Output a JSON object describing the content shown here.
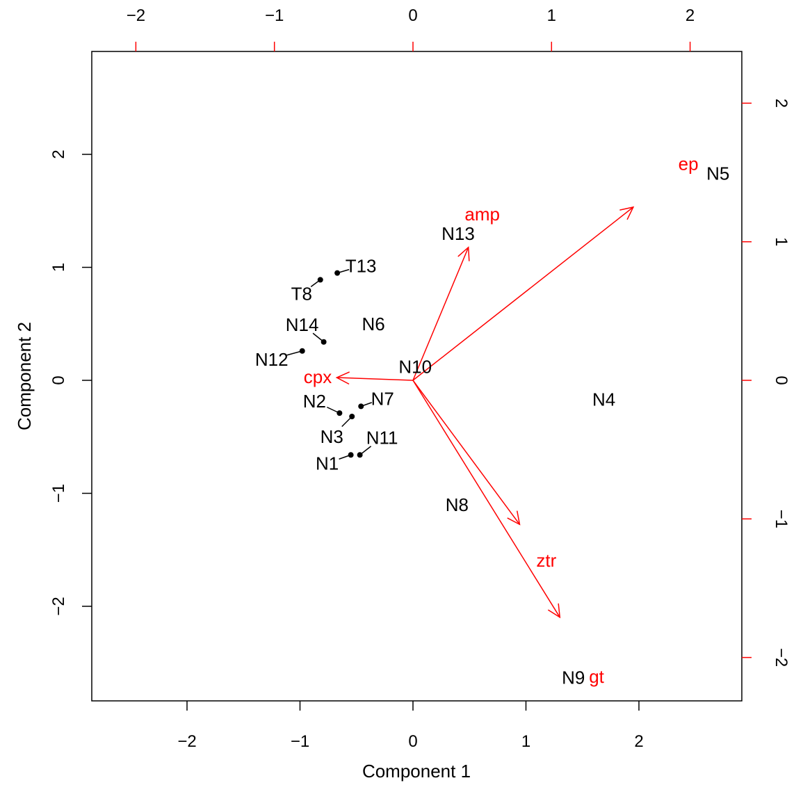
{
  "chart_data": {
    "type": "scatter",
    "subtype": "biplot",
    "title": "",
    "xlabel": "Component 1",
    "ylabel": "Component 2",
    "xlim": [
      -2.83,
      2.93
    ],
    "ylim": [
      -2.83,
      2.92
    ],
    "x_ticks": [
      -2,
      -1,
      0,
      1,
      2
    ],
    "y_ticks": [
      -2,
      -1,
      0,
      1,
      2
    ],
    "x_tick_labels": [
      "−2",
      "−1",
      "0",
      "1",
      "2"
    ],
    "y_tick_labels": [
      "−2",
      "−1",
      "0",
      "1",
      "2"
    ],
    "top_ticks": [
      -2,
      -1,
      0,
      1,
      2
    ],
    "right_ticks": [
      -2,
      -1,
      0,
      1,
      2
    ],
    "top_tick_labels": [
      "−2",
      "−1",
      "0",
      "1",
      "2"
    ],
    "right_tick_labels": [
      "−2",
      "−1",
      "0",
      "1",
      "2"
    ],
    "grid": false,
    "points": [
      {
        "label": "T13",
        "x": -0.67,
        "y": 0.95,
        "marker": true
      },
      {
        "label": "T8",
        "x": -0.82,
        "y": 0.89,
        "marker": true
      },
      {
        "label": "N14",
        "x": -0.79,
        "y": 0.34,
        "marker": true
      },
      {
        "label": "N12",
        "x": -0.98,
        "y": 0.26,
        "marker": true
      },
      {
        "label": "N2",
        "x": -0.65,
        "y": -0.29,
        "marker": true
      },
      {
        "label": "N3",
        "x": -0.54,
        "y": -0.32,
        "marker": true
      },
      {
        "label": "N7",
        "x": -0.46,
        "y": -0.23,
        "marker": true
      },
      {
        "label": "N1",
        "x": -0.55,
        "y": -0.66,
        "marker": true
      },
      {
        "label": "N11",
        "x": -0.47,
        "y": -0.66,
        "marker": true
      },
      {
        "label": "N6",
        "x": -0.35,
        "y": 0.5,
        "marker": false
      },
      {
        "label": "N10",
        "x": 0.02,
        "y": 0.12,
        "marker": false
      },
      {
        "label": "N13",
        "x": 0.4,
        "y": 1.3,
        "marker": false
      },
      {
        "label": "N5",
        "x": 2.7,
        "y": 1.83,
        "marker": false
      },
      {
        "label": "N4",
        "x": 1.69,
        "y": -0.17,
        "marker": false
      },
      {
        "label": "N8",
        "x": 0.39,
        "y": -1.1,
        "marker": false
      },
      {
        "label": "N9",
        "x": 1.42,
        "y": -2.63,
        "marker": false
      }
    ],
    "loadings": [
      {
        "label": "amp",
        "x": 0.4,
        "y": 0.96
      },
      {
        "label": "ep",
        "x": 1.59,
        "y": 1.25
      },
      {
        "label": "cpx",
        "x": -0.55,
        "y": 0.02
      },
      {
        "label": "ztr",
        "x": 0.77,
        "y": -1.04
      },
      {
        "label": "gt",
        "x": 1.06,
        "y": -1.71
      }
    ],
    "colors": {
      "points": "#000000",
      "loadings": "#ff0000"
    }
  }
}
